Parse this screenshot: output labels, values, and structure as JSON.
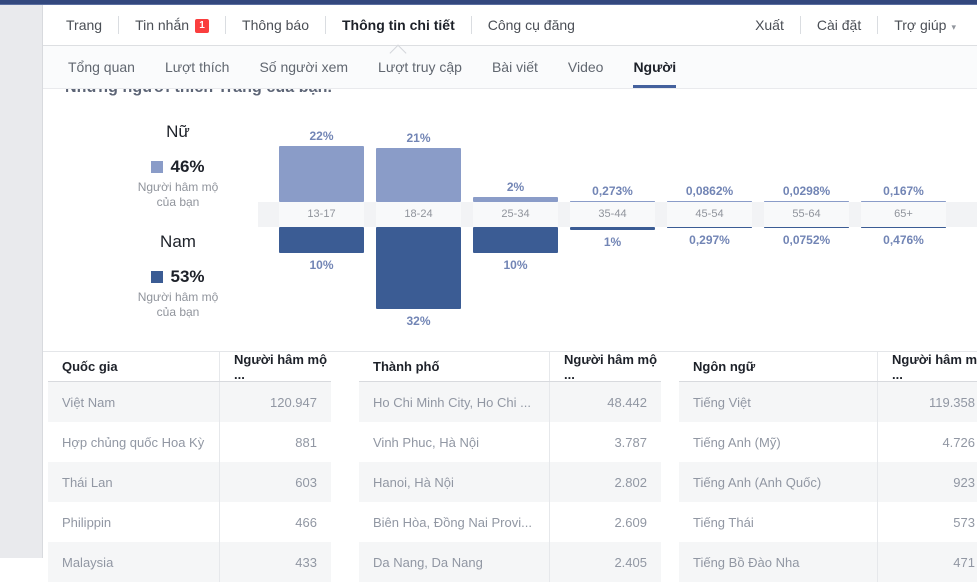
{
  "top_nav": {
    "items": [
      {
        "label": "Trang"
      },
      {
        "label": "Tin nhắn",
        "badge": "1"
      },
      {
        "label": "Thông báo"
      },
      {
        "label": "Thông tin chi tiết",
        "active": true
      },
      {
        "label": "Công cụ đăng"
      }
    ],
    "right_items": [
      {
        "label": "Xuất"
      },
      {
        "label": "Cài đặt"
      },
      {
        "label": "Trợ giúp"
      }
    ]
  },
  "sub_nav": {
    "items": [
      {
        "label": "Tổng quan"
      },
      {
        "label": "Lượt thích"
      },
      {
        "label": "Số người xem"
      },
      {
        "label": "Lượt truy cập"
      },
      {
        "label": "Bài viết"
      },
      {
        "label": "Video"
      },
      {
        "label": "Người",
        "active": true
      }
    ]
  },
  "section_title": "Những người thích Trang của bạn.",
  "legend": {
    "female": {
      "title": "Nữ",
      "pct": "46%",
      "caption_line1": "Người hâm mộ",
      "caption_line2": "của bạn"
    },
    "male": {
      "title": "Nam",
      "pct": "53%",
      "caption_line1": "Người hâm mộ",
      "caption_line2": "của bạn"
    }
  },
  "chart_data": {
    "type": "bar",
    "title": "Những người thích Trang của bạn.",
    "categories": [
      "13-17",
      "18-24",
      "25-34",
      "35-44",
      "45-54",
      "55-64",
      "65+"
    ],
    "series": [
      {
        "name": "Nữ",
        "total": 46,
        "values": [
          22,
          21,
          2,
          0.273,
          0.0862,
          0.0298,
          0.167
        ],
        "labels": [
          "22%",
          "21%",
          "2%",
          "0,273%",
          "0,0862%",
          "0,0298%",
          "0,167%"
        ]
      },
      {
        "name": "Nam",
        "total": 53,
        "values": [
          10,
          32,
          10,
          1,
          0.297,
          0.0752,
          0.476
        ],
        "labels": [
          "10%",
          "32%",
          "10%",
          "1%",
          "0,297%",
          "0,0752%",
          "0,476%"
        ]
      }
    ],
    "legend_position": "left",
    "xlabel": "",
    "ylabel": "",
    "orientation": "diverging-vertical"
  },
  "tables": [
    {
      "header": {
        "name": "Quốc gia",
        "value": "Người hâm mộ ..."
      },
      "rows": [
        {
          "name": "Việt Nam",
          "value": "120.947"
        },
        {
          "name": "Hợp chủng quốc Hoa Kỳ",
          "value": "881"
        },
        {
          "name": "Thái Lan",
          "value": "603"
        },
        {
          "name": "Philippin",
          "value": "466"
        },
        {
          "name": "Malaysia",
          "value": "433"
        }
      ]
    },
    {
      "header": {
        "name": "Thành phố",
        "value": "Người hâm mộ ..."
      },
      "rows": [
        {
          "name": "Ho Chi Minh City, Ho Chi ...",
          "value": "48.442"
        },
        {
          "name": "Vinh Phuc, Hà Nội",
          "value": "3.787"
        },
        {
          "name": "Hanoi, Hà Nội",
          "value": "2.802"
        },
        {
          "name": "Biên Hòa, Đồng Nai Provi...",
          "value": "2.609"
        },
        {
          "name": "Da Nang, Da Nang",
          "value": "2.405"
        }
      ]
    },
    {
      "header": {
        "name": "Ngôn ngữ",
        "value": "Người hâm mộ ..."
      },
      "rows": [
        {
          "name": "Tiếng Việt",
          "value": "119.358"
        },
        {
          "name": "Tiếng Anh (Mỹ)",
          "value": "4.726"
        },
        {
          "name": "Tiếng Anh (Anh Quốc)",
          "value": "923"
        },
        {
          "name": "Tiếng Thái",
          "value": "573"
        },
        {
          "name": "Tiếng Bồ Đào Nha",
          "value": "471"
        }
      ]
    }
  ],
  "icons": {
    "caret_down": "▾"
  },
  "colors": {
    "female_bar": "#8a9cc8",
    "male_bar": "#3b5c94",
    "pct_label": "#7285b5",
    "top_strip": "#33487e",
    "badge_red": "#fa3e3e",
    "active_tab_underline": "#44619d"
  }
}
